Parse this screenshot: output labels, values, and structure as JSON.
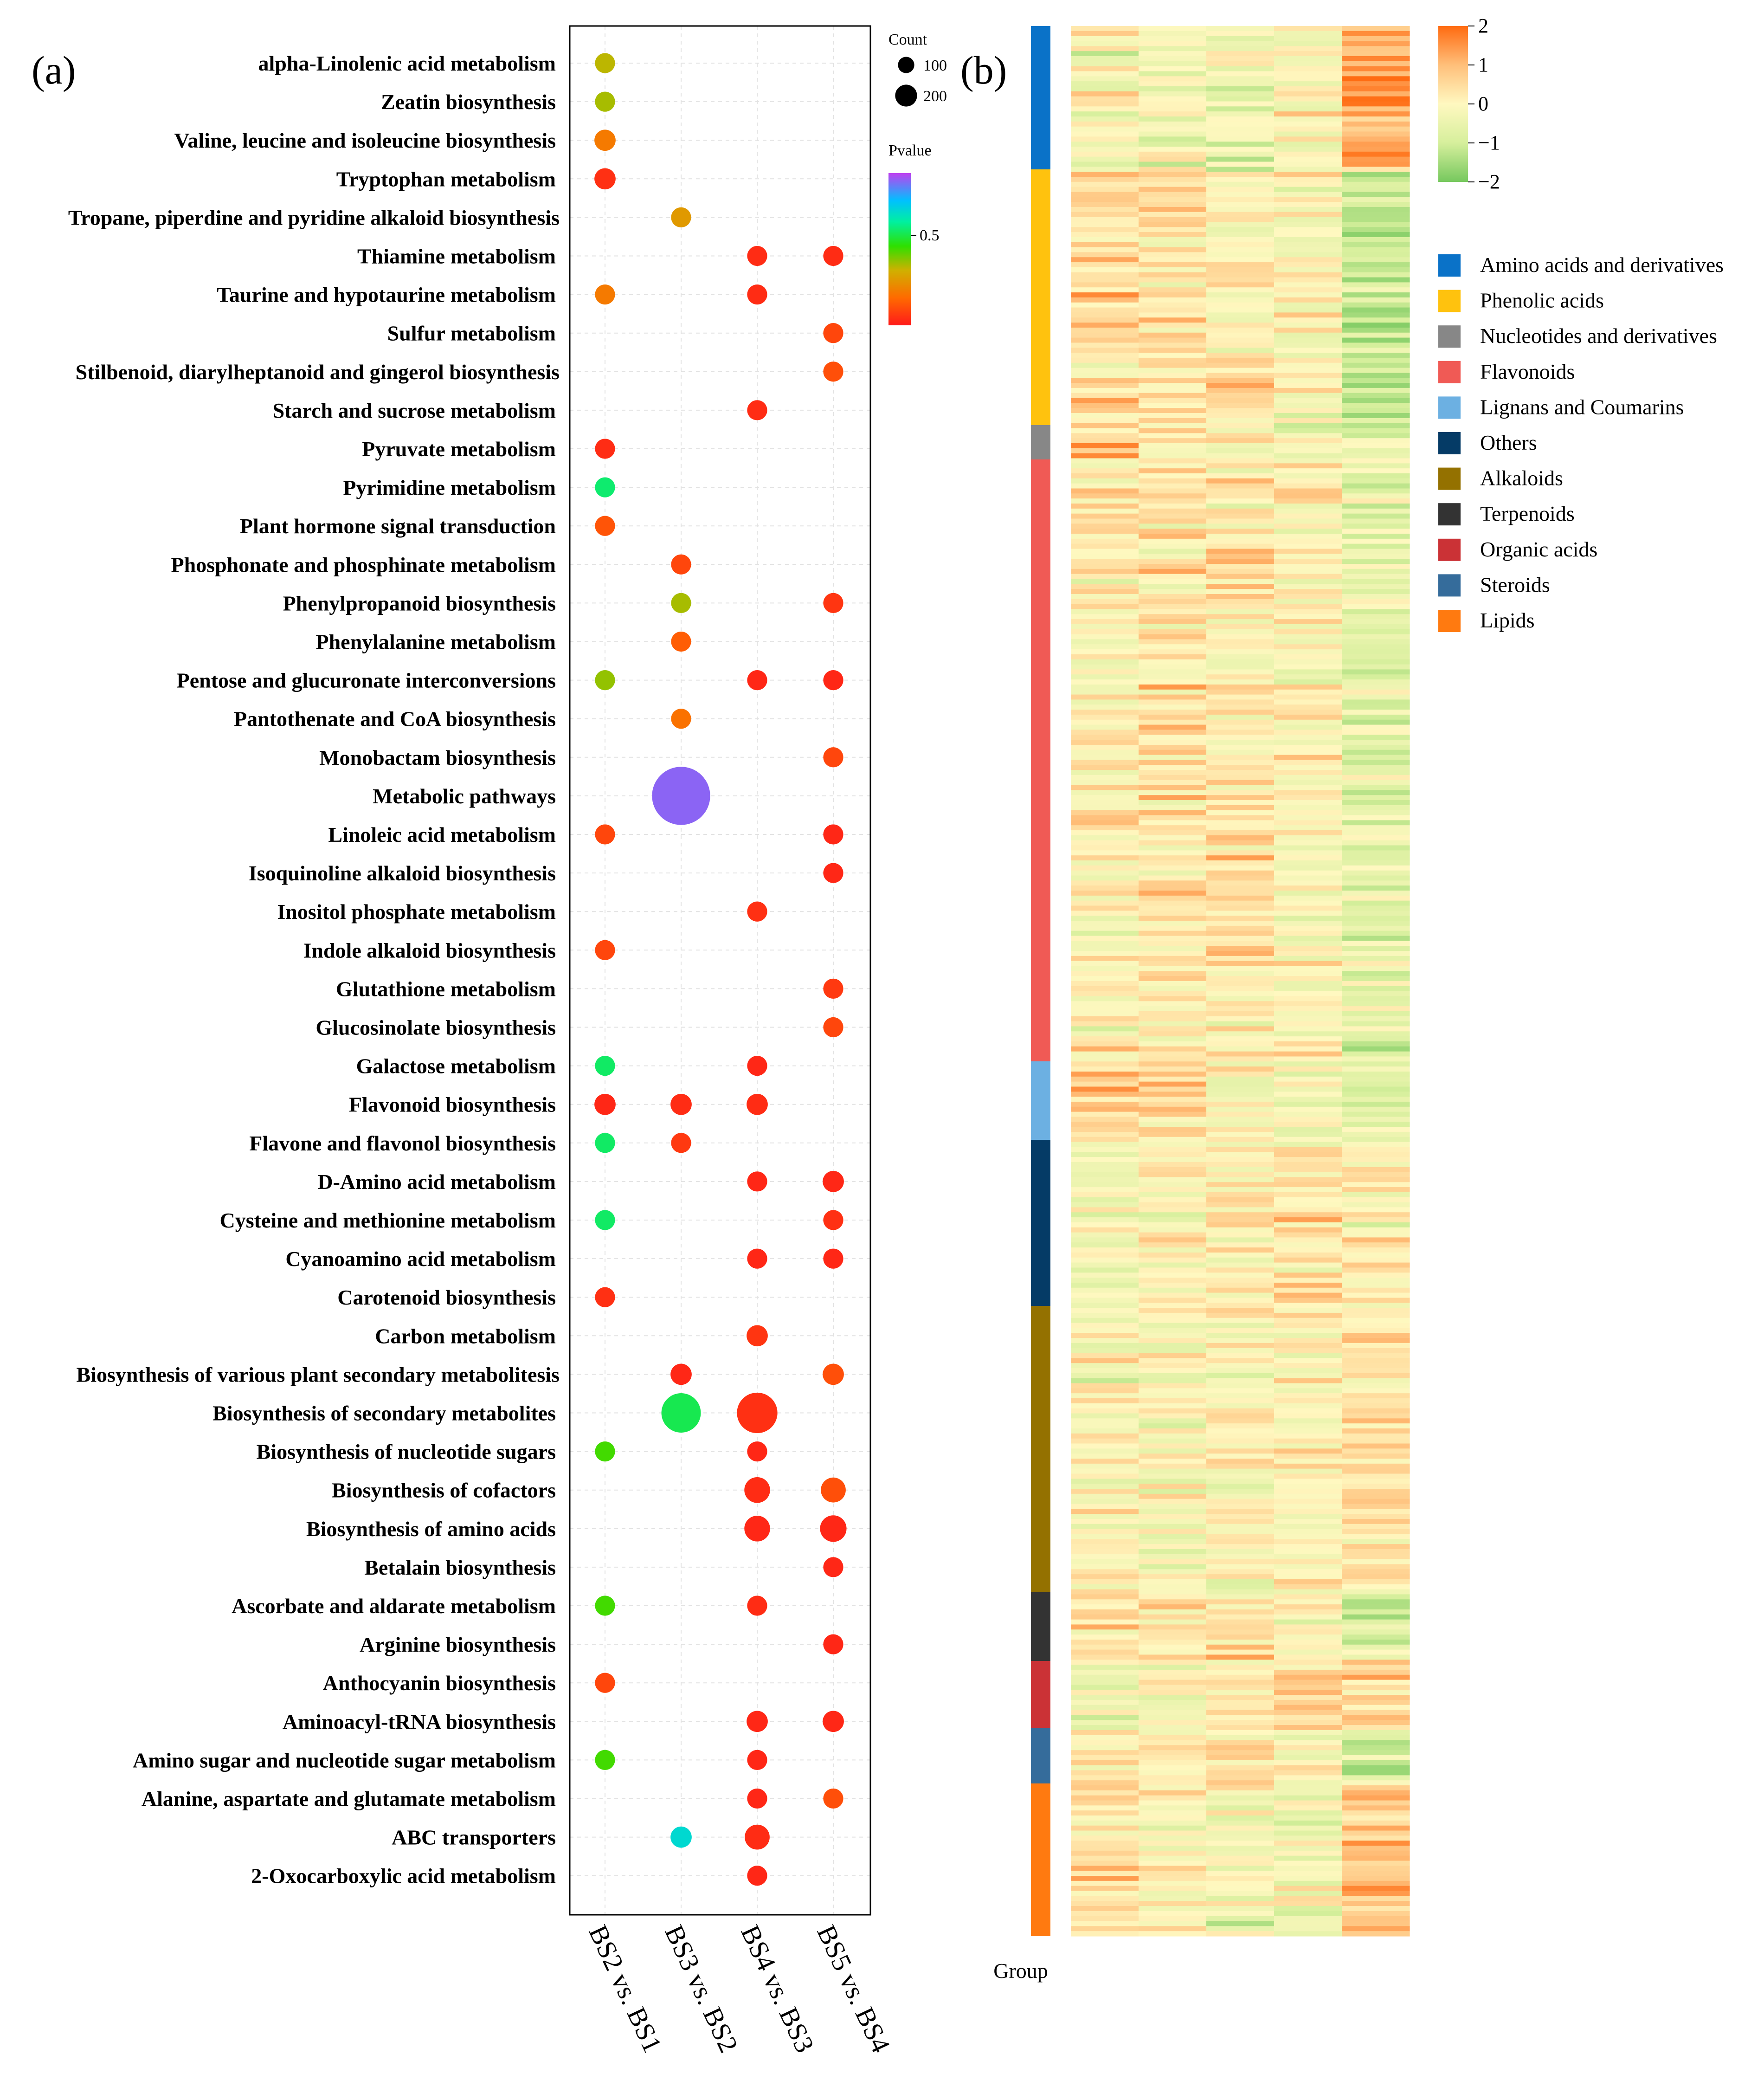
{
  "panel_a_label": "(a)",
  "panel_b_label": "(b)",
  "chart_data": [
    {
      "type": "scatter",
      "subtype": "bubble",
      "x_categories": [
        "BS2 vs. BS1",
        "BS3 vs. BS2",
        "BS4 vs. BS3",
        "BS5 vs. BS4"
      ],
      "y_categories": [
        "alpha-Linolenic acid metabolism",
        "Zeatin biosynthesis",
        "Valine, leucine and isoleucine biosynthesis",
        "Tryptophan metabolism",
        "Tropane, piperdine and pyridine alkaloid biosynthesis",
        "Thiamine metabolism",
        "Taurine and hypotaurine metabolism",
        "Sulfur metabolism",
        "Stilbenoid, diarylheptanoid and gingerol biosynthesis",
        "Starch and sucrose metabolism",
        "Pyruvate metabolism",
        "Pyrimidine metabolism",
        "Plant hormone signal transduction",
        "Phosphonate and phosphinate metabolism",
        "Phenylpropanoid biosynthesis",
        "Phenylalanine metabolism",
        "Pentose and glucuronate interconversions",
        "Pantothenate and CoA biosynthesis",
        "Monobactam biosynthesis",
        "Metabolic pathways",
        "Linoleic acid metabolism",
        "Isoquinoline alkaloid biosynthesis",
        "Inositol phosphate metabolism",
        "Indole alkaloid biosynthesis",
        "Glutathione metabolism",
        "Glucosinolate biosynthesis",
        "Galactose metabolism",
        "Flavonoid biosynthesis",
        "Flavone and flavonol biosynthesis",
        "D-Amino acid metabolism",
        "Cysteine and methionine metabolism",
        "Cyanoamino acid metabolism",
        "Carotenoid biosynthesis",
        "Carbon metabolism",
        "Biosynthesis of various plant secondary metabolitesis",
        "Biosynthesis of secondary metabolites",
        "Biosynthesis of nucleotide sugars",
        "Biosynthesis of cofactors",
        "Biosynthesis of amino acids",
        "Betalain biosynthesis",
        "Ascorbate and aldarate metabolism",
        "Arginine biosynthesis",
        "Anthocyanin biosynthesis",
        "Aminoacyl-tRNA biosynthesis",
        "Amino sugar and nucleotide sugar metabolism",
        "Alanine, aspartate and glutamate metabolism",
        "ABC transporters",
        "2-Oxocarboxylic acid metabolism"
      ],
      "points": [
        {
          "term": 0,
          "x": 0,
          "count": 10,
          "pvalue": 0.38
        },
        {
          "term": 1,
          "x": 0,
          "count": 10,
          "pvalue": 0.4
        },
        {
          "term": 2,
          "x": 0,
          "count": 12,
          "pvalue": 0.22
        },
        {
          "term": 3,
          "x": 0,
          "count": 12,
          "pvalue": 0.05
        },
        {
          "term": 4,
          "x": 1,
          "count": 10,
          "pvalue": 0.3
        },
        {
          "term": 5,
          "x": 2,
          "count": 10,
          "pvalue": 0.04
        },
        {
          "term": 5,
          "x": 3,
          "count": 10,
          "pvalue": 0.04
        },
        {
          "term": 6,
          "x": 0,
          "count": 10,
          "pvalue": 0.22
        },
        {
          "term": 6,
          "x": 2,
          "count": 10,
          "pvalue": 0.04
        },
        {
          "term": 7,
          "x": 3,
          "count": 10,
          "pvalue": 0.1
        },
        {
          "term": 8,
          "x": 3,
          "count": 10,
          "pvalue": 0.12
        },
        {
          "term": 9,
          "x": 2,
          "count": 10,
          "pvalue": 0.04
        },
        {
          "term": 10,
          "x": 0,
          "count": 10,
          "pvalue": 0.04
        },
        {
          "term": 11,
          "x": 0,
          "count": 10,
          "pvalue": 0.63
        },
        {
          "term": 12,
          "x": 0,
          "count": 10,
          "pvalue": 0.13
        },
        {
          "term": 13,
          "x": 1,
          "count": 10,
          "pvalue": 0.1
        },
        {
          "term": 14,
          "x": 1,
          "count": 10,
          "pvalue": 0.4
        },
        {
          "term": 14,
          "x": 3,
          "count": 10,
          "pvalue": 0.06
        },
        {
          "term": 15,
          "x": 1,
          "count": 10,
          "pvalue": 0.15
        },
        {
          "term": 16,
          "x": 0,
          "count": 10,
          "pvalue": 0.42
        },
        {
          "term": 16,
          "x": 2,
          "count": 10,
          "pvalue": 0.03
        },
        {
          "term": 16,
          "x": 3,
          "count": 10,
          "pvalue": 0.03
        },
        {
          "term": 17,
          "x": 1,
          "count": 10,
          "pvalue": 0.2
        },
        {
          "term": 18,
          "x": 3,
          "count": 10,
          "pvalue": 0.1
        },
        {
          "term": 19,
          "x": 1,
          "count": 180,
          "pvalue": 0.95
        },
        {
          "term": 20,
          "x": 0,
          "count": 10,
          "pvalue": 0.1
        },
        {
          "term": 20,
          "x": 3,
          "count": 10,
          "pvalue": 0.03
        },
        {
          "term": 21,
          "x": 3,
          "count": 10,
          "pvalue": 0.03
        },
        {
          "term": 22,
          "x": 2,
          "count": 10,
          "pvalue": 0.05
        },
        {
          "term": 23,
          "x": 0,
          "count": 10,
          "pvalue": 0.1
        },
        {
          "term": 24,
          "x": 3,
          "count": 10,
          "pvalue": 0.07
        },
        {
          "term": 25,
          "x": 3,
          "count": 10,
          "pvalue": 0.1
        },
        {
          "term": 26,
          "x": 0,
          "count": 10,
          "pvalue": 0.62
        },
        {
          "term": 26,
          "x": 2,
          "count": 10,
          "pvalue": 0.03
        },
        {
          "term": 27,
          "x": 0,
          "count": 12,
          "pvalue": 0.03
        },
        {
          "term": 27,
          "x": 1,
          "count": 12,
          "pvalue": 0.04
        },
        {
          "term": 27,
          "x": 2,
          "count": 12,
          "pvalue": 0.04
        },
        {
          "term": 28,
          "x": 0,
          "count": 10,
          "pvalue": 0.62
        },
        {
          "term": 28,
          "x": 1,
          "count": 10,
          "pvalue": 0.07
        },
        {
          "term": 29,
          "x": 2,
          "count": 10,
          "pvalue": 0.03
        },
        {
          "term": 29,
          "x": 3,
          "count": 12,
          "pvalue": 0.03
        },
        {
          "term": 30,
          "x": 0,
          "count": 10,
          "pvalue": 0.62
        },
        {
          "term": 30,
          "x": 3,
          "count": 10,
          "pvalue": 0.05
        },
        {
          "term": 31,
          "x": 2,
          "count": 10,
          "pvalue": 0.03
        },
        {
          "term": 31,
          "x": 3,
          "count": 10,
          "pvalue": 0.03
        },
        {
          "term": 32,
          "x": 0,
          "count": 10,
          "pvalue": 0.05
        },
        {
          "term": 33,
          "x": 2,
          "count": 12,
          "pvalue": 0.06
        },
        {
          "term": 34,
          "x": 1,
          "count": 12,
          "pvalue": 0.03
        },
        {
          "term": 34,
          "x": 3,
          "count": 12,
          "pvalue": 0.12
        },
        {
          "term": 35,
          "x": 1,
          "count": 70,
          "pvalue": 0.6
        },
        {
          "term": 35,
          "x": 2,
          "count": 75,
          "pvalue": 0.05
        },
        {
          "term": 36,
          "x": 0,
          "count": 10,
          "pvalue": 0.5
        },
        {
          "term": 36,
          "x": 2,
          "count": 10,
          "pvalue": 0.03
        },
        {
          "term": 37,
          "x": 2,
          "count": 22,
          "pvalue": 0.04
        },
        {
          "term": 37,
          "x": 3,
          "count": 20,
          "pvalue": 0.12
        },
        {
          "term": 38,
          "x": 2,
          "count": 22,
          "pvalue": 0.03
        },
        {
          "term": 38,
          "x": 3,
          "count": 24,
          "pvalue": 0.03
        },
        {
          "term": 39,
          "x": 3,
          "count": 10,
          "pvalue": 0.03
        },
        {
          "term": 40,
          "x": 0,
          "count": 10,
          "pvalue": 0.5
        },
        {
          "term": 40,
          "x": 2,
          "count": 10,
          "pvalue": 0.04
        },
        {
          "term": 41,
          "x": 3,
          "count": 10,
          "pvalue": 0.03
        },
        {
          "term": 42,
          "x": 0,
          "count": 10,
          "pvalue": 0.1
        },
        {
          "term": 43,
          "x": 2,
          "count": 12,
          "pvalue": 0.03
        },
        {
          "term": 43,
          "x": 3,
          "count": 12,
          "pvalue": 0.03
        },
        {
          "term": 44,
          "x": 0,
          "count": 10,
          "pvalue": 0.5
        },
        {
          "term": 44,
          "x": 2,
          "count": 10,
          "pvalue": 0.03
        },
        {
          "term": 45,
          "x": 2,
          "count": 10,
          "pvalue": 0.03
        },
        {
          "term": 45,
          "x": 3,
          "count": 10,
          "pvalue": 0.12
        },
        {
          "term": 46,
          "x": 1,
          "count": 12,
          "pvalue": 0.75
        },
        {
          "term": 46,
          "x": 2,
          "count": 20,
          "pvalue": 0.04
        },
        {
          "term": 47,
          "x": 2,
          "count": 10,
          "pvalue": 0.03
        }
      ],
      "size_legend": {
        "title": "Count",
        "values": [
          100,
          200
        ]
      },
      "color_legend": {
        "title": "Pvalue",
        "ticks": [
          0.5
        ],
        "tick_labels": [
          "0.5"
        ],
        "range": [
          0,
          1
        ]
      },
      "grid": true
    },
    {
      "type": "heatmap",
      "columns": 5,
      "rows": 380,
      "color_scale": {
        "min": -2,
        "max": 2,
        "ticks": [
          2,
          1,
          0,
          -1,
          -2
        ],
        "tick_labels": [
          "2",
          "1",
          "0",
          "−1",
          "−2"
        ],
        "colors": {
          "low": "#76c85e",
          "mid": "#fff8c0",
          "high": "#ff6a10"
        }
      },
      "group_label": "Group",
      "groups": [
        {
          "name": "Amino acids and derivatives",
          "color": "#0a72c8",
          "fraction": 0.075
        },
        {
          "name": "Phenolic acids",
          "color": "#ffc20e",
          "fraction": 0.134
        },
        {
          "name": "Nucleotides and derivatives",
          "color": "#878787",
          "fraction": 0.018
        },
        {
          "name": "Flavonoids",
          "color": "#f05a55",
          "fraction": 0.315
        },
        {
          "name": "Lignans and Coumarins",
          "color": "#6cb0e2",
          "fraction": 0.041
        },
        {
          "name": "Others",
          "color": "#053b66",
          "fraction": 0.087
        },
        {
          "name": "Alkaloids",
          "color": "#947100",
          "fraction": 0.15
        },
        {
          "name": "Terpenoids",
          "color": "#333333",
          "fraction": 0.036
        },
        {
          "name": "Organic acids",
          "color": "#cb3236",
          "fraction": 0.035
        },
        {
          "name": "Steroids",
          "color": "#356c9b",
          "fraction": 0.029
        },
        {
          "name": "Lipids",
          "color": "#ff7a10",
          "fraction": 0.08
        }
      ],
      "column_trend": [
        [
          -0.1,
          -0.3,
          -0.5,
          -0.1,
          1.2
        ],
        [
          0.4,
          0.5,
          0.3,
          0.0,
          -1.2
        ],
        [
          1.0,
          0.2,
          0.0,
          -0.3,
          -0.6
        ],
        [
          0.1,
          0.3,
          0.2,
          0.0,
          -0.6
        ],
        [
          0.6,
          0.7,
          0.1,
          -0.4,
          -0.8
        ],
        [
          -0.2,
          0.0,
          0.1,
          0.4,
          0.2
        ],
        [
          0.0,
          -0.1,
          -0.1,
          0.1,
          0.3
        ],
        [
          0.2,
          0.4,
          0.3,
          0.0,
          -1.0
        ],
        [
          -0.3,
          -0.2,
          0.0,
          0.4,
          0.6
        ],
        [
          0.2,
          0.4,
          0.5,
          0.0,
          -1.0
        ],
        [
          0.3,
          0.0,
          -0.2,
          -0.3,
          0.8
        ]
      ]
    }
  ]
}
